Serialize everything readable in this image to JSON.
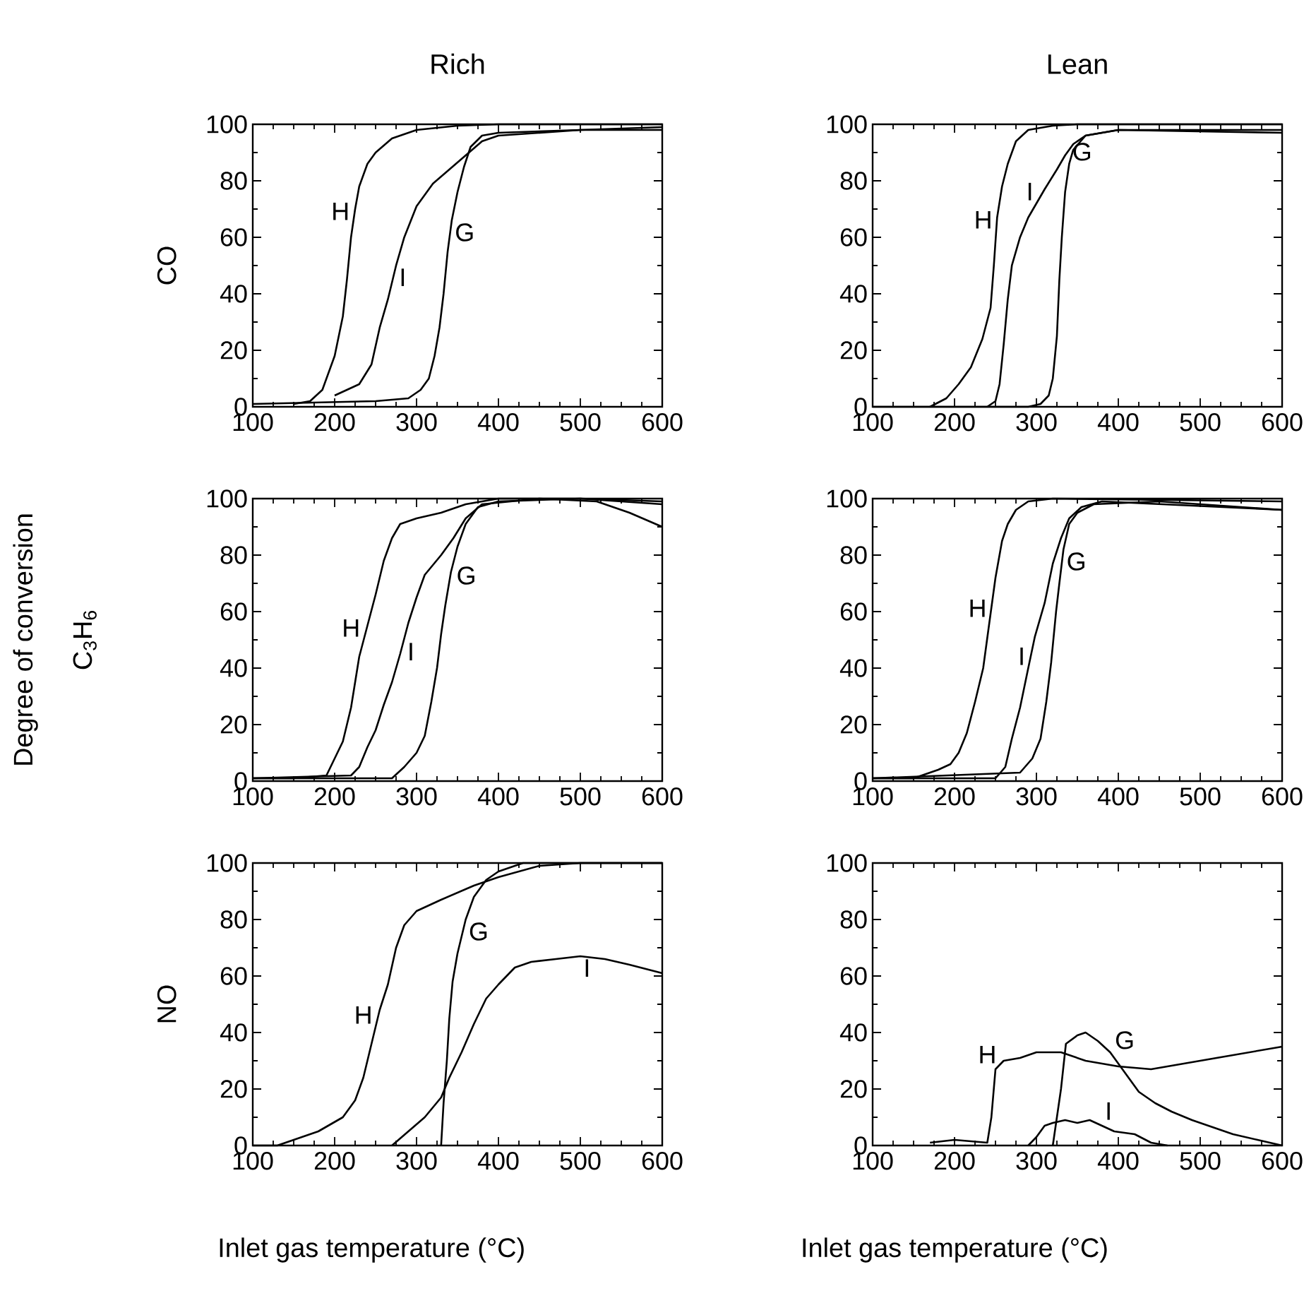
{
  "chart_data": [
    {
      "type": "line",
      "title": "Rich",
      "ylabel": "CO",
      "xlim": [
        100,
        600
      ],
      "ylim": [
        0,
        100
      ],
      "xticks": [
        100,
        200,
        300,
        400,
        500,
        600
      ],
      "yticks": [
        0,
        20,
        40,
        60,
        80,
        100
      ],
      "series": [
        {
          "name": "G",
          "color": "#000000",
          "x": [
            100,
            250,
            290,
            305,
            315,
            322,
            328,
            333,
            338,
            343,
            350,
            358,
            366,
            380,
            400,
            500,
            600
          ],
          "values": [
            1,
            2,
            3,
            6,
            10,
            18,
            28,
            40,
            55,
            66,
            76,
            85,
            92,
            96,
            97,
            98,
            98
          ]
        },
        {
          "name": "H",
          "color": "#000000",
          "x": [
            150,
            170,
            185,
            200,
            210,
            215,
            220,
            225,
            230,
            240,
            250,
            270,
            300,
            350,
            400,
            600
          ],
          "values": [
            1,
            2,
            6,
            18,
            32,
            45,
            60,
            70,
            78,
            86,
            90,
            95,
            98,
            99.5,
            100,
            100
          ]
        },
        {
          "name": "I",
          "color": "#000000",
          "x": [
            200,
            230,
            245,
            255,
            265,
            275,
            285,
            300,
            320,
            340,
            360,
            380,
            400,
            450,
            500,
            600
          ],
          "values": [
            4,
            8,
            15,
            28,
            38,
            50,
            60,
            71,
            79,
            84,
            89,
            94,
            96,
            97,
            98,
            99
          ]
        }
      ]
    },
    {
      "type": "line",
      "title": "Lean",
      "xlim": [
        100,
        600
      ],
      "ylim": [
        0,
        100
      ],
      "xticks": [
        100,
        200,
        300,
        400,
        500,
        600
      ],
      "yticks": [
        0,
        20,
        40,
        60,
        80,
        100
      ],
      "series": [
        {
          "name": "G",
          "color": "#000000",
          "x": [
            100,
            290,
            305,
            315,
            320,
            325,
            328,
            331,
            335,
            340,
            345,
            360,
            400,
            600
          ],
          "values": [
            0,
            0,
            1,
            4,
            10,
            25,
            45,
            60,
            76,
            86,
            91,
            96,
            98,
            98
          ]
        },
        {
          "name": "H",
          "color": "#000000",
          "x": [
            170,
            190,
            205,
            220,
            234,
            244,
            248,
            252,
            258,
            265,
            275,
            290,
            320,
            350,
            600
          ],
          "values": [
            0,
            3,
            8,
            14,
            24,
            35,
            50,
            67,
            78,
            86,
            94,
            98,
            99.5,
            100,
            100
          ]
        },
        {
          "name": "I",
          "color": "#000000",
          "x": [
            240,
            250,
            255,
            260,
            265,
            270,
            280,
            290,
            310,
            325,
            335,
            345,
            360,
            400,
            600
          ],
          "values": [
            0,
            2,
            8,
            22,
            38,
            50,
            60,
            67,
            77,
            84,
            89,
            93,
            96,
            98,
            97
          ]
        }
      ]
    },
    {
      "type": "line",
      "ylabel": "C$_{3}$H$_{6}$",
      "annotations": [
        "Degree of conversion"
      ],
      "xlim": [
        100,
        600
      ],
      "ylim": [
        0,
        100
      ],
      "xticks": [
        100,
        200,
        300,
        400,
        500,
        600
      ],
      "yticks": [
        0,
        20,
        40,
        60,
        80,
        100
      ],
      "series": [
        {
          "name": "G",
          "color": "#000000",
          "x": [
            100,
            270,
            285,
            300,
            310,
            318,
            325,
            330,
            335,
            342,
            350,
            360,
            375,
            400,
            500,
            600
          ],
          "values": [
            1,
            1,
            5,
            10,
            16,
            28,
            40,
            52,
            62,
            74,
            83,
            91,
            97,
            99,
            100,
            98
          ]
        },
        {
          "name": "H",
          "color": "#000000",
          "x": [
            100,
            150,
            190,
            200,
            210,
            220,
            230,
            240,
            250,
            260,
            270,
            280,
            300,
            330,
            360,
            400,
            500,
            600
          ],
          "values": [
            1,
            1,
            2,
            8,
            14,
            26,
            44,
            55,
            66,
            78,
            86,
            91,
            93,
            95,
            98,
            100,
            100,
            99
          ]
        },
        {
          "name": "I",
          "color": "#000000",
          "x": [
            100,
            220,
            230,
            240,
            250,
            260,
            270,
            280,
            290,
            300,
            310,
            330,
            345,
            360,
            380,
            450,
            520,
            560,
            600
          ],
          "values": [
            1,
            2,
            5,
            12,
            18,
            27,
            35,
            45,
            56,
            65,
            73,
            80,
            86,
            93,
            98,
            100,
            99,
            95,
            90
          ]
        }
      ]
    },
    {
      "type": "line",
      "xlim": [
        100,
        600
      ],
      "ylim": [
        0,
        100
      ],
      "xticks": [
        100,
        200,
        300,
        400,
        500,
        600
      ],
      "yticks": [
        0,
        20,
        40,
        60,
        80,
        100
      ],
      "series": [
        {
          "name": "G",
          "color": "#000000",
          "x": [
            100,
            280,
            295,
            305,
            312,
            318,
            324,
            328,
            333,
            340,
            350,
            370,
            450,
            600
          ],
          "values": [
            1,
            3,
            8,
            15,
            28,
            42,
            60,
            70,
            82,
            91,
            95,
            98,
            99,
            96
          ]
        },
        {
          "name": "H",
          "color": "#000000",
          "x": [
            100,
            150,
            180,
            195,
            205,
            215,
            225,
            235,
            242,
            250,
            258,
            265,
            275,
            290,
            320,
            600
          ],
          "values": [
            1,
            1,
            4,
            6,
            10,
            17,
            28,
            40,
            55,
            72,
            85,
            91,
            96,
            99,
            100,
            99
          ]
        },
        {
          "name": "I",
          "color": "#000000",
          "x": [
            100,
            250,
            262,
            270,
            280,
            290,
            298,
            310,
            320,
            330,
            340,
            355,
            380,
            600
          ],
          "values": [
            1,
            1,
            5,
            15,
            26,
            40,
            51,
            63,
            77,
            86,
            93,
            97,
            99,
            96
          ]
        }
      ]
    },
    {
      "type": "line",
      "ylabel": "NO",
      "xlabel": "Inlet gas temperature (°C)",
      "xlim": [
        100,
        600
      ],
      "ylim": [
        0,
        100
      ],
      "xticks": [
        100,
        200,
        300,
        400,
        500,
        600
      ],
      "yticks": [
        0,
        20,
        40,
        60,
        80,
        100
      ],
      "series": [
        {
          "name": "G",
          "color": "#000000",
          "x": [
            330,
            333,
            337,
            340,
            344,
            350,
            360,
            370,
            385,
            400,
            430,
            600
          ],
          "values": [
            0,
            15,
            30,
            45,
            58,
            68,
            80,
            88,
            94,
            97,
            100,
            100
          ]
        },
        {
          "name": "H",
          "color": "#000000",
          "x": [
            100,
            130,
            150,
            180,
            210,
            225,
            235,
            245,
            255,
            265,
            275,
            285,
            300,
            330,
            370,
            400,
            450,
            500,
            600
          ],
          "values": [
            0,
            0,
            2,
            5,
            10,
            16,
            24,
            36,
            48,
            57,
            70,
            78,
            83,
            87,
            92,
            95,
            99,
            100,
            100
          ]
        },
        {
          "name": "I",
          "color": "#000000",
          "x": [
            270,
            290,
            310,
            330,
            340,
            355,
            370,
            385,
            400,
            420,
            440,
            470,
            500,
            530,
            560,
            600
          ],
          "values": [
            0,
            5,
            10,
            17,
            24,
            33,
            43,
            52,
            57,
            63,
            65,
            66,
            67,
            66,
            64,
            61
          ]
        }
      ]
    },
    {
      "type": "line",
      "xlabel": "Inlet gas temperature (°C)",
      "xlim": [
        100,
        600
      ],
      "ylim": [
        0,
        100
      ],
      "xticks": [
        100,
        200,
        300,
        400,
        500,
        600
      ],
      "yticks": [
        0,
        20,
        40,
        60,
        80,
        100
      ],
      "series": [
        {
          "name": "G",
          "color": "#000000",
          "x": [
            320,
            330,
            336,
            350,
            360,
            375,
            390,
            410,
            425,
            445,
            465,
            490,
            510,
            540,
            570,
            600
          ],
          "values": [
            0,
            20,
            36,
            39,
            40,
            37,
            33,
            25,
            19,
            15,
            12,
            9,
            7,
            4,
            2,
            0
          ]
        },
        {
          "name": "H",
          "color": "#000000",
          "x": [
            170,
            200,
            240,
            245,
            250,
            260,
            280,
            300,
            330,
            360,
            400,
            440,
            480,
            520,
            560,
            600
          ],
          "values": [
            1,
            2,
            1,
            10,
            27,
            30,
            31,
            33,
            33,
            30,
            28,
            27,
            29,
            31,
            33,
            35
          ]
        },
        {
          "name": "I",
          "color": "#000000",
          "x": [
            290,
            300,
            310,
            320,
            335,
            350,
            365,
            380,
            395,
            420,
            440,
            460
          ],
          "values": [
            0,
            3,
            7,
            8,
            9,
            8,
            9,
            7,
            5,
            4,
            1,
            0
          ]
        }
      ]
    }
  ]
}
